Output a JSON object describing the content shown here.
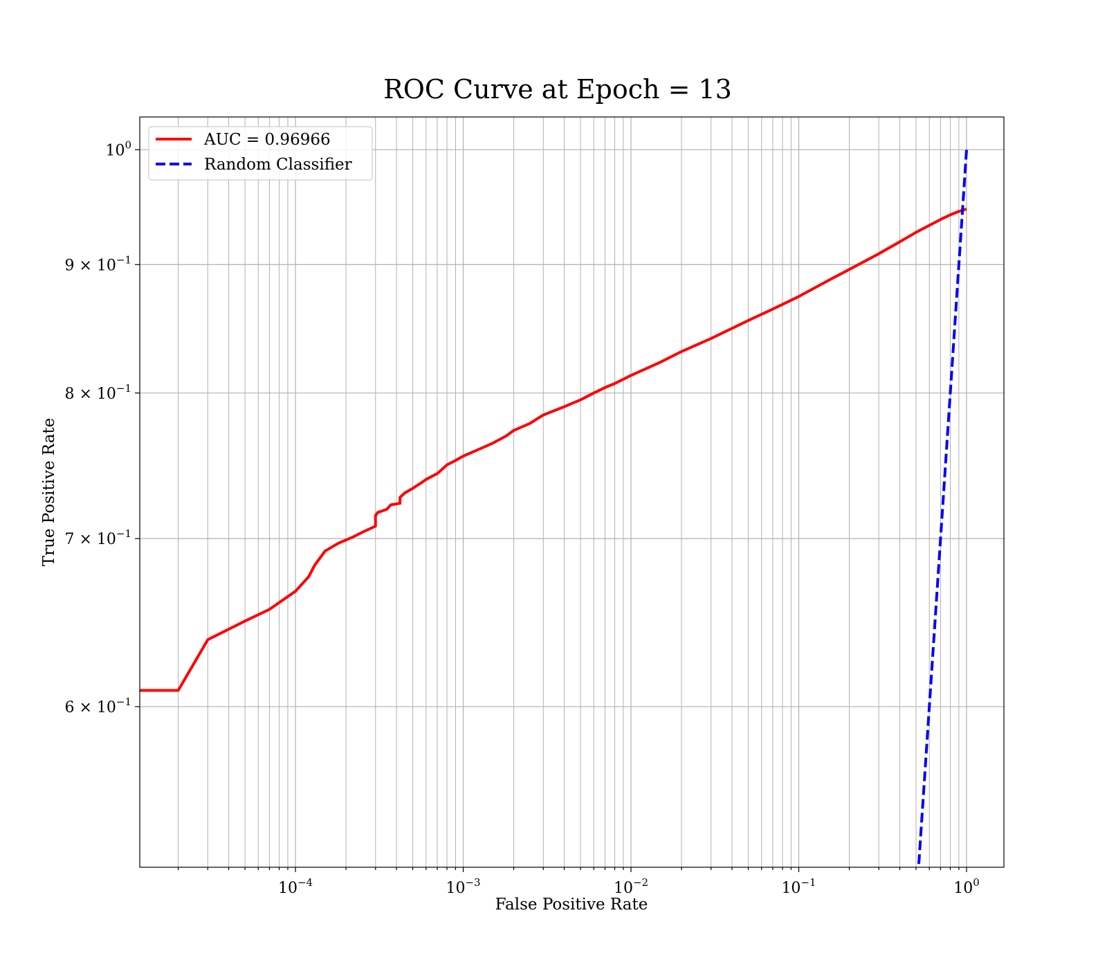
{
  "chart_data": {
    "type": "line",
    "title": "ROC Curve at Epoch = 13",
    "xlabel": "False Positive Rate",
    "ylabel": "True Positive Rate",
    "xscale": "log",
    "yscale": "log",
    "xlim": [
      1.18e-05,
      1.67
    ],
    "ylim": [
      0.5178,
      1.0305
    ],
    "grid": true,
    "legend_position": "upper-left",
    "x_ticks": [
      {
        "value": 0.0001,
        "base": "10",
        "exp": "−4"
      },
      {
        "value": 0.001,
        "base": "10",
        "exp": "−3"
      },
      {
        "value": 0.01,
        "base": "10",
        "exp": "−2"
      },
      {
        "value": 0.1,
        "base": "10",
        "exp": "−1"
      },
      {
        "value": 1,
        "base": "10",
        "exp": "0"
      }
    ],
    "y_ticks": [
      {
        "value": 1.0,
        "base": "10",
        "exp": "0"
      },
      {
        "value": 0.9,
        "base": "9 × 10",
        "exp": "−1"
      },
      {
        "value": 0.8,
        "base": "8 × 10",
        "exp": "−1"
      },
      {
        "value": 0.7,
        "base": "7 × 10",
        "exp": "−1"
      },
      {
        "value": 0.6,
        "base": "6 × 10",
        "exp": "−1"
      }
    ],
    "series": [
      {
        "name": "AUC = 0.96966",
        "color": "#ff0000",
        "style": "solid",
        "x": [
          1e-05,
          2e-05,
          3e-05,
          5e-05,
          7e-05,
          0.0001,
          0.00012,
          0.00013,
          0.00015,
          0.00018,
          0.00022,
          0.00025,
          0.0003,
          0.0003,
          0.00031,
          0.00035,
          0.00037,
          0.00042,
          0.00042,
          0.00045,
          0.0005,
          0.00055,
          0.0006,
          0.0007,
          0.00075,
          0.0008,
          0.0009,
          0.001,
          0.0012,
          0.0015,
          0.0018,
          0.002,
          0.0025,
          0.003,
          0.004,
          0.005,
          0.006,
          0.007,
          0.008,
          0.01,
          0.015,
          0.02,
          0.03,
          0.05,
          0.07,
          0.1,
          0.15,
          0.2,
          0.3,
          0.4,
          0.5,
          0.6,
          0.7,
          0.8,
          0.9,
          1.0
        ],
        "y": [
          0.609,
          0.609,
          0.638,
          0.649,
          0.656,
          0.667,
          0.676,
          0.683,
          0.692,
          0.697,
          0.701,
          0.704,
          0.708,
          0.715,
          0.717,
          0.719,
          0.722,
          0.723,
          0.727,
          0.73,
          0.733,
          0.736,
          0.739,
          0.743,
          0.746,
          0.749,
          0.752,
          0.755,
          0.759,
          0.764,
          0.769,
          0.773,
          0.778,
          0.784,
          0.79,
          0.795,
          0.8,
          0.804,
          0.807,
          0.813,
          0.823,
          0.831,
          0.841,
          0.855,
          0.864,
          0.874,
          0.887,
          0.896,
          0.909,
          0.919,
          0.927,
          0.933,
          0.938,
          0.942,
          0.945,
          0.947
        ]
      },
      {
        "name": "Random Classifier",
        "color": "#0000ff",
        "style": "dashed",
        "x": [
          0.5,
          1.0
        ],
        "y": [
          0.5,
          1.0
        ]
      }
    ]
  }
}
